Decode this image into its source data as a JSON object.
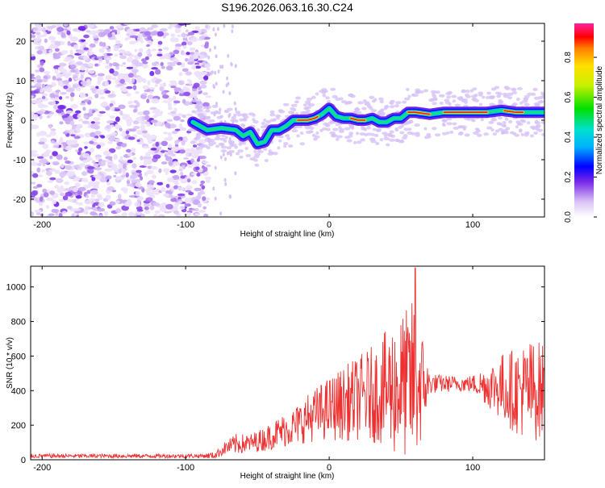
{
  "title": "S196.2026.063.16.30.C24",
  "colors": {
    "snr_line": "#ee3030",
    "ridge_core": "#e02020",
    "frame": "#000000"
  },
  "chart_data": [
    {
      "type": "heatmap",
      "name": "spectrogram",
      "xlabel": "Height of straight line (km)",
      "ylabel": "Frequency (Hz)",
      "xlim": [
        -208,
        150
      ],
      "ylim": [
        -24.5,
        24.5
      ],
      "xticks": [
        -200,
        -100,
        0,
        100
      ],
      "xtick_labels": [
        "-200",
        "-100",
        "0",
        "100"
      ],
      "yticks": [
        -20,
        -10,
        0,
        10,
        20
      ],
      "ytick_labels": [
        "-20",
        "-10",
        "0",
        "10",
        "20"
      ],
      "noise_region_x": [
        -208,
        -84
      ],
      "ridge": {
        "x": [
          -95,
          -85,
          -75,
          -65,
          -60,
          -55,
          -50,
          -45,
          -40,
          -35,
          -30,
          -25,
          -20,
          -15,
          -10,
          -5,
          0,
          5,
          10,
          15,
          20,
          25,
          30,
          35,
          40,
          45,
          50,
          55,
          60,
          70,
          80,
          90,
          100,
          110,
          120,
          130,
          140,
          150
        ],
        "y": [
          -0.5,
          -2.5,
          -2.0,
          -2.5,
          -4.0,
          -3.0,
          -6.0,
          -5.5,
          -2.5,
          -2.5,
          -1.5,
          0,
          0,
          0,
          0.5,
          1.5,
          3.0,
          1.0,
          0.5,
          0.5,
          0,
          0,
          0.5,
          -0.5,
          -0.5,
          0.5,
          0.5,
          2.0,
          2.0,
          1.5,
          2.0,
          2.0,
          2.0,
          2.0,
          2.5,
          2.0,
          2.0,
          2.0
        ]
      },
      "colorbar": {
        "label": "Normalized spectral amplitude",
        "range": [
          0,
          0.97
        ],
        "ticks": [
          0.0,
          0.2,
          0.4,
          0.6,
          0.8
        ],
        "tick_labels": [
          "0.0",
          "0.2",
          "0.4",
          "0.6",
          "0.8"
        ]
      }
    },
    {
      "type": "line",
      "name": "snr",
      "xlabel": "Height of straight line (km)",
      "ylabel": "SNR (10 * v/v)",
      "xlim": [
        -208,
        150
      ],
      "ylim": [
        0,
        1120
      ],
      "xticks": [
        -200,
        -100,
        0,
        100
      ],
      "xtick_labels": [
        "-200",
        "-100",
        "0",
        "100"
      ],
      "yticks": [
        0,
        200,
        400,
        600,
        800,
        1000
      ],
      "ytick_labels": [
        "0",
        "200",
        "400",
        "600",
        "800",
        "1000"
      ],
      "envelope": {
        "x": [
          -208,
          -90,
          -80,
          -72,
          -65,
          -55,
          -45,
          -35,
          -25,
          -15,
          -5,
          5,
          15,
          25,
          35,
          45,
          50,
          55,
          60,
          65,
          70,
          80,
          90,
          100,
          110,
          120,
          130,
          140,
          150
        ],
        "mean": [
          22,
          22,
          25,
          70,
          90,
          95,
          120,
          160,
          190,
          240,
          280,
          310,
          340,
          370,
          390,
          420,
          430,
          440,
          450,
          430,
          440,
          440,
          440,
          440,
          430,
          420,
          400,
          400,
          400
        ],
        "spread": [
          12,
          12,
          20,
          40,
          60,
          55,
          70,
          90,
          110,
          140,
          170,
          200,
          230,
          260,
          300,
          400,
          420,
          440,
          520,
          300,
          60,
          50,
          45,
          50,
          120,
          200,
          250,
          300,
          280
        ]
      },
      "peak": {
        "x": 60,
        "y": 1110
      }
    }
  ]
}
